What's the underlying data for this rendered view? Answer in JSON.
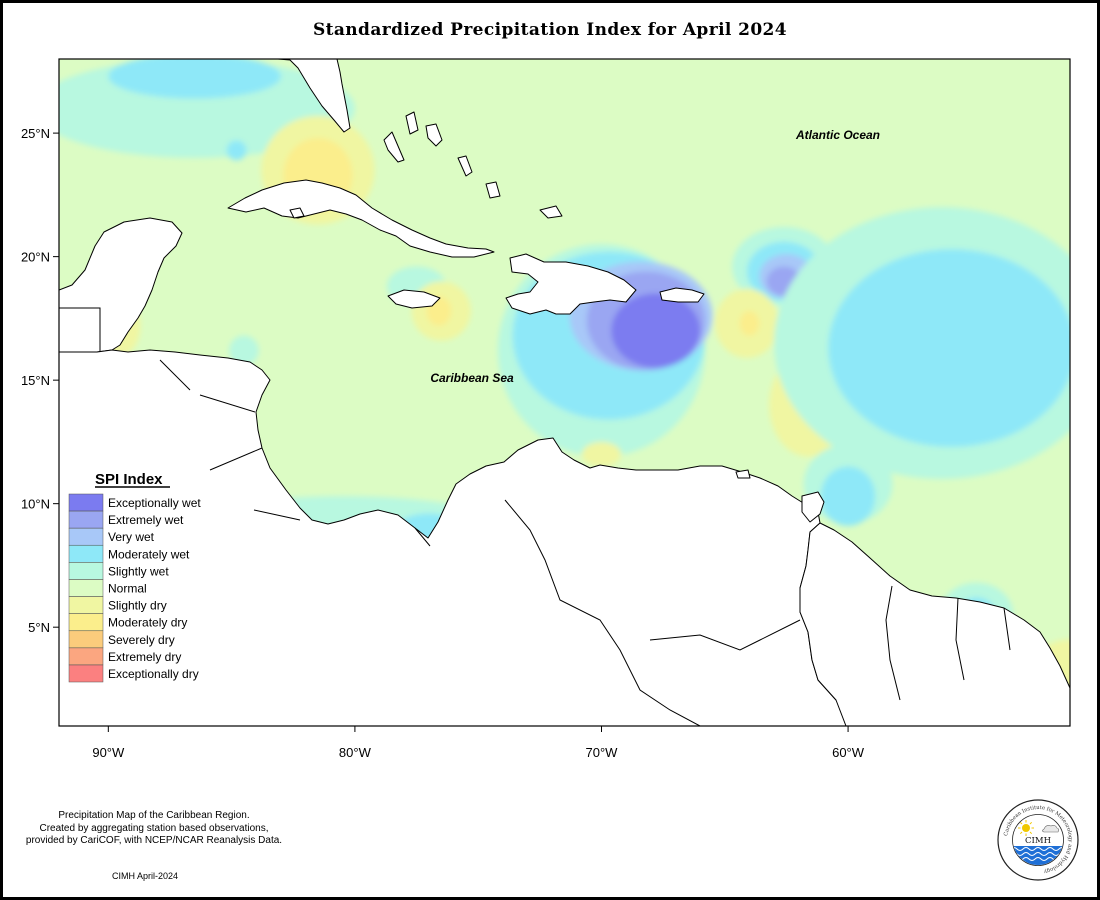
{
  "title": "Standardized Precipitation Index for April 2024",
  "map": {
    "lon_range": [
      -92,
      -51
    ],
    "lat_range": [
      1,
      28
    ],
    "x_ticks": [
      {
        "value": -90,
        "label": "90°W"
      },
      {
        "value": -80,
        "label": "80°W"
      },
      {
        "value": -70,
        "label": "70°W"
      },
      {
        "value": -60,
        "label": "60°W"
      }
    ],
    "y_ticks": [
      {
        "value": 25,
        "label": "25°N"
      },
      {
        "value": 20,
        "label": "20°N"
      },
      {
        "value": 15,
        "label": "15°N"
      },
      {
        "value": 10,
        "label": "10°N"
      },
      {
        "value": 5,
        "label": "5°N"
      }
    ],
    "ocean_labels": {
      "atlantic": "Atlantic Ocean",
      "caribbean": "Caribbean Sea"
    },
    "background_category": "Normal",
    "spi_regions": [
      {
        "category": "Slightly wet",
        "lon": -86.5,
        "lat": 26.0,
        "rlon": 6.5,
        "rlat": 2.0
      },
      {
        "category": "Moderately wet",
        "lon": -86.5,
        "lat": 27.3,
        "rlon": 3.5,
        "rlat": 0.9
      },
      {
        "category": "Moderately wet",
        "lon": -84.8,
        "lat": 24.3,
        "rlon": 0.4,
        "rlat": 0.4
      },
      {
        "category": "Slightly dry",
        "lon": -81.5,
        "lat": 23.5,
        "rlon": 2.3,
        "rlat": 2.2
      },
      {
        "category": "Moderately dry",
        "lon": -81.5,
        "lat": 23.3,
        "rlon": 1.4,
        "rlat": 1.5
      },
      {
        "category": "Slightly wet",
        "lon": -77.5,
        "lat": 18.8,
        "rlon": 1.2,
        "rlat": 0.8
      },
      {
        "category": "Slightly dry",
        "lon": -76.5,
        "lat": 17.8,
        "rlon": 1.2,
        "rlat": 1.2
      },
      {
        "category": "Moderately dry",
        "lon": -76.6,
        "lat": 17.8,
        "rlon": 0.5,
        "rlat": 0.6
      },
      {
        "category": "Slightly dry",
        "lon": -89.5,
        "lat": 17.2,
        "rlon": 0.8,
        "rlat": 1.2
      },
      {
        "category": "Slightly wet",
        "lon": -84.5,
        "lat": 16.2,
        "rlon": 0.6,
        "rlat": 0.6
      },
      {
        "category": "Slightly wet",
        "lon": -70.0,
        "lat": 16.2,
        "rlon": 4.2,
        "rlat": 4.3
      },
      {
        "category": "Moderately wet",
        "lon": -69.7,
        "lat": 16.8,
        "rlon": 3.9,
        "rlat": 3.4
      },
      {
        "category": "Very wet",
        "lon": -68.4,
        "lat": 17.6,
        "rlon": 2.9,
        "rlat": 2.2
      },
      {
        "category": "Extremely wet",
        "lon": -68.2,
        "lat": 17.4,
        "rlon": 2.4,
        "rlat": 2.0
      },
      {
        "category": "Exceptionally wet",
        "lon": -67.8,
        "lat": 17.0,
        "rlon": 1.8,
        "rlat": 1.5
      },
      {
        "category": "Slightly wet",
        "lon": -62.6,
        "lat": 19.6,
        "rlon": 2.1,
        "rlat": 1.6
      },
      {
        "category": "Moderately wet",
        "lon": -62.6,
        "lat": 19.4,
        "rlon": 1.5,
        "rlat": 1.2
      },
      {
        "category": "Very wet",
        "lon": -62.5,
        "lat": 19.2,
        "rlon": 1.1,
        "rlat": 0.9
      },
      {
        "category": "Extremely wet",
        "lon": -62.6,
        "lat": 19.0,
        "rlon": 0.7,
        "rlat": 0.6
      },
      {
        "category": "Slightly dry",
        "lon": -64.1,
        "lat": 17.3,
        "rlon": 1.3,
        "rlat": 1.4
      },
      {
        "category": "Moderately dry",
        "lon": -64.0,
        "lat": 17.3,
        "rlon": 0.4,
        "rlat": 0.5
      },
      {
        "category": "Slightly dry",
        "lon": -61.6,
        "lat": 14.0,
        "rlon": 1.6,
        "rlat": 2.1
      },
      {
        "category": "Moderately dry",
        "lon": -61.2,
        "lat": 14.5,
        "rlon": 0.9,
        "rlat": 0.9
      },
      {
        "category": "Slightly dry",
        "lon": -70.0,
        "lat": 12.0,
        "rlon": 0.8,
        "rlat": 0.5
      },
      {
        "category": "Slightly wet",
        "lon": -60.0,
        "lat": 10.8,
        "rlon": 1.8,
        "rlat": 1.6
      },
      {
        "category": "Moderately wet",
        "lon": -60.0,
        "lat": 10.3,
        "rlon": 1.1,
        "rlat": 1.2
      },
      {
        "category": "Slightly wet",
        "lon": -80.5,
        "lat": 9.2,
        "rlon": 6.2,
        "rlat": 1.1
      },
      {
        "category": "Moderately wet",
        "lon": -77.0,
        "lat": 9.0,
        "rlon": 1.3,
        "rlat": 0.6
      },
      {
        "category": "Slightly wet",
        "lon": -56.2,
        "lat": 16.5,
        "rlon": 6.8,
        "rlat": 5.5
      },
      {
        "category": "Moderately wet",
        "lon": -55.8,
        "lat": 16.3,
        "rlon": 5.0,
        "rlat": 4.0
      },
      {
        "category": "Slightly wet",
        "lon": -54.8,
        "lat": 5.5,
        "rlon": 1.5,
        "rlat": 1.3
      },
      {
        "category": "Moderately wet",
        "lon": -54.8,
        "lat": 5.5,
        "rlon": 0.8,
        "rlat": 0.7
      },
      {
        "category": "Slightly dry",
        "lon": -51.0,
        "lat": 3.2,
        "rlon": 1.6,
        "rlat": 1.3
      }
    ]
  },
  "legend": {
    "title": "SPI Index",
    "items": [
      {
        "label": "Exceptionally wet",
        "color": "#7b7bf0"
      },
      {
        "label": "Extremely wet",
        "color": "#9aa6f2"
      },
      {
        "label": "Very wet",
        "color": "#a8c8f8"
      },
      {
        "label": "Moderately wet",
        "color": "#8ee8f8"
      },
      {
        "label": "Slightly wet",
        "color": "#b8f8e0"
      },
      {
        "label": "Normal",
        "color": "#dcfcc4"
      },
      {
        "label": "Slightly dry",
        "color": "#f0f6a2"
      },
      {
        "label": "Moderately dry",
        "color": "#fbee8c"
      },
      {
        "label": "Severely dry",
        "color": "#fbcc7c"
      },
      {
        "label": "Extremely dry",
        "color": "#fba680"
      },
      {
        "label": "Exceptionally dry",
        "color": "#fb8080"
      }
    ]
  },
  "footer": {
    "line1": "Precipitation Map of the Caribbean Region.",
    "line2": "Created by aggregating station based observations,",
    "line3": "provided by CariCOF, with NCEP/NCAR Reanalysis Data.",
    "date": "CIMH April-2024"
  },
  "logo": {
    "name": "CIMH",
    "ring_text": "Caribbean Institute for Meteorology and Hydrology"
  }
}
